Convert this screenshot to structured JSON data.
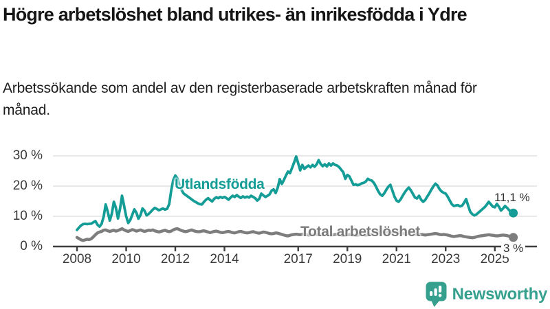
{
  "chart_data": {
    "type": "line",
    "title": "Högre arbetslöshet bland utrikes- än inrikesfödda i Ydre",
    "subtitle": "Arbetssökande som andel av den registerbaserade arbetskraften månad för månad.",
    "x_frequency": "monthly",
    "x_start": "2008-01",
    "x_end": "2025-10",
    "ylim": [
      0,
      30
    ],
    "grid": "horizontal",
    "legend_position": "inline-labels",
    "y_ticks": [
      {
        "value": 0,
        "label": "0 %"
      },
      {
        "value": 10,
        "label": "10 %"
      },
      {
        "value": 20,
        "label": "20 %"
      },
      {
        "value": 30,
        "label": "30 %"
      }
    ],
    "x_tick_years": [
      2008,
      2010,
      2012,
      2014,
      2017,
      2019,
      2021,
      2023,
      2025
    ],
    "series": [
      {
        "name": "Utlandsfödda",
        "color": "#149c96",
        "end_label": "11,1 %",
        "end_value": 11.1,
        "values": [
          5.5,
          6.3,
          7.0,
          7.4,
          7.5,
          7.4,
          7.5,
          7.6,
          8.0,
          8.4,
          7.2,
          6.6,
          7.5,
          9.8,
          13.9,
          11.5,
          8.6,
          10.8,
          14.8,
          12.8,
          9.3,
          12.5,
          16.8,
          13.5,
          10.0,
          7.8,
          8.8,
          10.5,
          12.3,
          11.2,
          9.2,
          10.4,
          12.6,
          11.8,
          10.3,
          10.8,
          11.5,
          12.2,
          12.8,
          12.4,
          12.0,
          12.3,
          12.6,
          12.2,
          12.5,
          14.0,
          18.5,
          22.0,
          23.5,
          22.6,
          20.3,
          18.8,
          17.6,
          17.1,
          16.6,
          16.1,
          15.6,
          15.1,
          14.7,
          14.3,
          14.0,
          13.9,
          14.8,
          15.5,
          16.0,
          15.4,
          14.9,
          15.8,
          16.3,
          16.0,
          16.4,
          16.1,
          16.4,
          16.0,
          15.5,
          16.2,
          16.8,
          16.4,
          17.0,
          16.5,
          16.1,
          16.6,
          16.2,
          16.5,
          16.2,
          16.8,
          16.4,
          16.0,
          15.2,
          15.8,
          17.5,
          16.9,
          16.4,
          16.8,
          17.2,
          18.5,
          18.9,
          17.7,
          19.5,
          22.3,
          20.7,
          22.0,
          23.5,
          24.8,
          24.3,
          26.0,
          27.8,
          29.8,
          27.5,
          25.2,
          27.0,
          25.7,
          26.3,
          26.8,
          26.2,
          27.0,
          26.4,
          27.2,
          28.6,
          27.3,
          26.6,
          27.2,
          26.5,
          27.5,
          26.8,
          27.5,
          27.0,
          26.8,
          26.3,
          25.4,
          24.6,
          22.4,
          23.7,
          23.2,
          21.8,
          20.4,
          20.6,
          20.3,
          20.5,
          20.9,
          21.1,
          21.5,
          22.4,
          22.0,
          21.8,
          21.0,
          19.8,
          18.4,
          17.3,
          16.8,
          17.6,
          18.8,
          19.8,
          20.4,
          18.5,
          16.5,
          15.2,
          14.8,
          15.6,
          16.8,
          17.9,
          18.8,
          19.5,
          18.6,
          17.4,
          16.2,
          15.9,
          16.8,
          15.5,
          14.8,
          15.4,
          16.5,
          17.6,
          18.8,
          19.9,
          20.8,
          20.2,
          19.0,
          18.2,
          17.8,
          17.5,
          16.5,
          15.2,
          14.0,
          13.4,
          13.6,
          13.7,
          13.3,
          13.5,
          14.5,
          15.7,
          13.5,
          11.5,
          10.7,
          10.3,
          10.6,
          11.2,
          11.8,
          12.4,
          13.0,
          13.8,
          14.8,
          14.0,
          13.2,
          13.0,
          14.1,
          13.2,
          11.9,
          12.6,
          13.4,
          12.8,
          12.0,
          11.5,
          11.1
        ]
      },
      {
        "name": "Total arbetslöshet",
        "color": "#7d7d7d",
        "end_label": "3 %",
        "end_value": 3.0,
        "values": [
          3.0,
          2.6,
          2.2,
          2.0,
          2.2,
          2.4,
          2.3,
          2.6,
          3.2,
          3.9,
          4.5,
          4.8,
          5.0,
          5.4,
          5.5,
          5.2,
          5.0,
          5.2,
          5.4,
          5.1,
          5.3,
          5.6,
          5.9,
          5.5,
          5.2,
          5.0,
          5.3,
          5.6,
          5.4,
          5.1,
          5.3,
          5.5,
          5.2,
          5.0,
          5.2,
          5.4,
          5.3,
          5.5,
          5.2,
          5.0,
          4.8,
          5.0,
          5.2,
          5.4,
          5.1,
          4.9,
          5.1,
          5.5,
          5.8,
          5.9,
          5.6,
          5.3,
          5.1,
          4.9,
          5.1,
          5.3,
          5.5,
          5.2,
          5.0,
          4.9,
          4.9,
          5.1,
          5.2,
          5.0,
          4.8,
          4.6,
          4.8,
          5.0,
          5.1,
          4.9,
          4.7,
          4.6,
          4.7,
          4.9,
          5.0,
          4.8,
          4.6,
          4.5,
          4.7,
          4.9,
          5.0,
          4.8,
          4.6,
          4.5,
          4.6,
          4.8,
          4.9,
          4.7,
          4.5,
          4.4,
          4.6,
          4.8,
          4.7,
          4.5,
          4.3,
          4.2,
          4.3,
          4.5,
          4.4,
          4.2,
          4.0,
          3.8,
          3.6,
          3.5,
          3.7,
          3.9,
          4.0,
          4.1,
          4.0,
          3.9,
          4.1,
          4.2,
          4.0,
          3.8,
          3.9,
          4.1,
          4.2,
          4.0,
          3.9,
          4.0,
          4.1,
          4.2,
          4.0,
          3.9,
          3.8,
          3.9,
          4.0,
          4.1,
          4.0,
          3.8,
          3.7,
          3.8,
          3.9,
          4.0,
          3.9,
          3.8,
          3.7,
          3.8,
          3.9,
          4.0,
          3.9,
          3.8,
          3.9,
          4.0,
          4.1,
          4.2,
          4.4,
          4.6,
          4.7,
          4.8,
          4.9,
          4.8,
          4.7,
          4.6,
          4.5,
          4.4,
          4.5,
          4.6,
          4.5,
          4.4,
          4.3,
          4.2,
          4.3,
          4.4,
          4.3,
          4.1,
          4.0,
          4.1,
          4.0,
          3.9,
          3.8,
          3.9,
          4.0,
          4.1,
          4.2,
          4.3,
          4.2,
          4.0,
          3.9,
          4.0,
          3.9,
          3.8,
          3.6,
          3.4,
          3.3,
          3.4,
          3.5,
          3.6,
          3.5,
          3.3,
          3.2,
          3.1,
          3.0,
          2.9,
          3.0,
          3.2,
          3.4,
          3.5,
          3.6,
          3.7,
          3.8,
          3.9,
          3.8,
          3.7,
          3.6,
          3.5,
          3.6,
          3.7,
          3.8,
          3.7,
          3.6,
          3.4,
          3.2,
          3.0
        ]
      }
    ]
  },
  "footer": {
    "brand": "Newsworthy",
    "brand_color": "#35a08e"
  }
}
